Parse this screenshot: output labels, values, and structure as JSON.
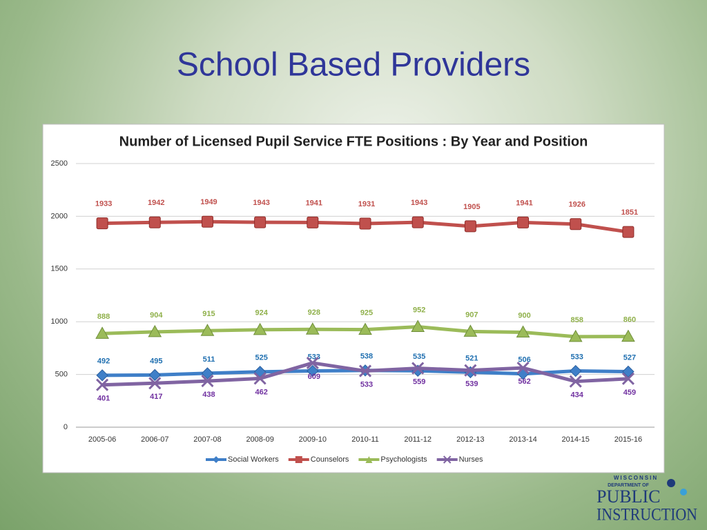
{
  "slide_title": "School Based Providers",
  "logo": {
    "line1": "WISCONSIN",
    "line2": "DEPARTMENT OF",
    "line3": "PUBLIC",
    "line4": "INSTRUCTION"
  },
  "chart_data": {
    "type": "line",
    "title": "Number of Licensed Pupil Service FTE Positions : By Year and Position",
    "categories": [
      "2005-06",
      "2006-07",
      "2007-08",
      "2008-09",
      "2009-10",
      "2010-11",
      "2011-12",
      "2012-13",
      "2013-14",
      "2014-15",
      "2015-16"
    ],
    "series": [
      {
        "name": "Social Workers",
        "color": "#3f7fc8",
        "label_color": "#1f6fb0",
        "marker": "diamond",
        "values": [
          492,
          495,
          511,
          525,
          533,
          538,
          535,
          521,
          506,
          533,
          527
        ]
      },
      {
        "name": "Counselors",
        "color": "#c0504d",
        "label_color": "#c0504d",
        "marker": "square",
        "values": [
          1933,
          1942,
          1949,
          1943,
          1941,
          1931,
          1943,
          1905,
          1941,
          1926,
          1851
        ]
      },
      {
        "name": "Psychologists",
        "color": "#9bbb59",
        "label_color": "#8fb04a",
        "marker": "triangle",
        "values": [
          888,
          904,
          915,
          924,
          928,
          925,
          952,
          907,
          900,
          858,
          860
        ]
      },
      {
        "name": "Nurses",
        "color": "#8064a2",
        "label_color": "#7030a0",
        "marker": "x",
        "values": [
          401,
          417,
          438,
          462,
          609,
          533,
          559,
          539,
          562,
          434,
          459
        ]
      }
    ],
    "ylim": [
      0,
      2500
    ],
    "yticks": [
      0,
      500,
      1000,
      1500,
      2000,
      2500
    ],
    "grid": true,
    "legend": "bottom"
  }
}
